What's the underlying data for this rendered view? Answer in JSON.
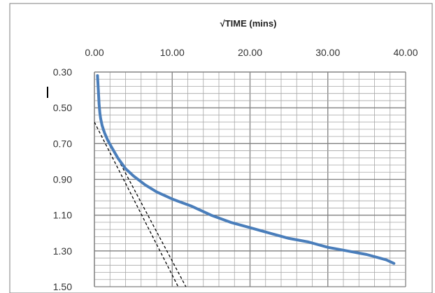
{
  "chart_data": {
    "type": "line",
    "title": "√TIME (mins)",
    "xlabel": "",
    "ylabel": "",
    "x_axis_position": "top",
    "y_inverted": true,
    "xlim": [
      0,
      40
    ],
    "ylim": [
      0.3,
      1.5
    ],
    "x_ticks": [
      "0.00",
      "10.00",
      "20.00",
      "30.00",
      "40.00"
    ],
    "y_ticks": [
      "0.30",
      "0.50",
      "0.70",
      "0.90",
      "1.10",
      "1.30",
      "1.50"
    ],
    "grid": true,
    "series": [
      {
        "color": "#4a7ebb",
        "x": [
          0.4,
          0.5,
          0.6,
          0.7,
          0.8,
          1.0,
          1.3,
          1.7,
          2.2,
          3.0,
          4.0,
          5.0,
          6.5,
          8.0,
          10.0,
          12.5,
          15.0,
          17.5,
          20.0,
          22.5,
          25.0,
          27.5,
          30.0,
          32.5,
          35.0,
          37.5,
          38.5
        ],
        "y": [
          0.32,
          0.4,
          0.48,
          0.53,
          0.56,
          0.6,
          0.64,
          0.68,
          0.72,
          0.78,
          0.84,
          0.88,
          0.93,
          0.97,
          1.01,
          1.05,
          1.1,
          1.14,
          1.17,
          1.2,
          1.23,
          1.25,
          1.28,
          1.3,
          1.32,
          1.35,
          1.37
        ]
      }
    ],
    "tangent_lines": [
      {
        "style": "dashed",
        "color": "#000000",
        "x": [
          0.0,
          11.0
        ],
        "y": [
          0.58,
          1.52
        ]
      },
      {
        "style": "dashed",
        "color": "#000000",
        "x": [
          1.0,
          12.0
        ],
        "y": [
          0.62,
          1.52
        ]
      }
    ]
  }
}
